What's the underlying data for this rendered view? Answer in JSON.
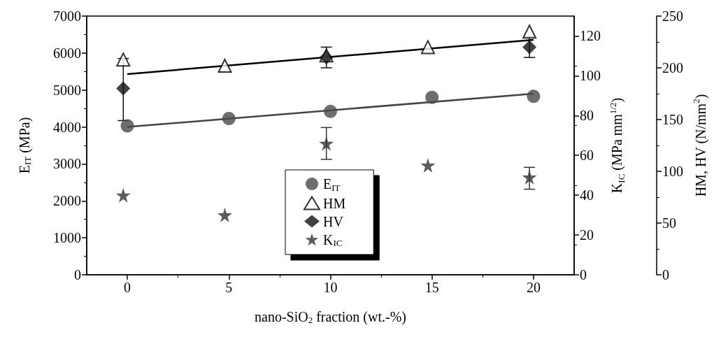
{
  "chart_data": {
    "type": "scatter",
    "xlabel": "nano-SiO$_{2}$ fraction (wt.-%)",
    "ylabel": "E$_{IT}$ (MPa)",
    "y2label": "K$_{IC}$ (MPa mm$^{1/2}$)",
    "y3label": "HM, HV (N/mm$^{2}$)",
    "xlim": [
      -2,
      22
    ],
    "xticks": [
      0,
      5,
      10,
      15,
      20
    ],
    "ylim": [
      0,
      7000
    ],
    "yticks": [
      0,
      1000,
      2000,
      3000,
      4000,
      5000,
      6000,
      7000
    ],
    "y2lim": [
      0,
      130
    ],
    "y2ticks": [
      0,
      20,
      40,
      60,
      80,
      100,
      120
    ],
    "y3lim": [
      0,
      250
    ],
    "y3ticks": [
      0,
      50,
      100,
      150,
      200,
      250
    ],
    "legend": "bottom",
    "grid": false,
    "series": [
      {
        "name": "E$_{IT}$",
        "color": "#4a4a4a",
        "marker": "circle",
        "x": [
          0,
          5,
          10,
          15,
          20
        ],
        "values": [
          4030,
          4230,
          4420,
          4800,
          4830
        ]
      },
      {
        "name": "HM",
        "color": "#ffffff",
        "marker": "triangle",
        "axis": "y3",
        "x": [
          -0.2,
          4.8,
          9.8,
          14.8,
          19.8
        ],
        "values": [
          208,
          202,
          212,
          220,
          235
        ]
      },
      {
        "name": "HV",
        "color": "#111111",
        "marker": "diamond",
        "axis": "y3",
        "x": [
          -0.2,
          9.8,
          19.8
        ],
        "values": [
          180,
          210,
          220
        ],
        "errors": [
          [
            149,
            209
          ],
          [
            200,
            220
          ],
          [
            210,
            230
          ]
        ]
      },
      {
        "name": "K$_{IC}$",
        "color": "#333333",
        "marker": "star",
        "axis": "y2",
        "x": [
          -0.2,
          4.8,
          9.8,
          14.8,
          19.8
        ],
        "values": [
          40,
          30,
          66,
          55,
          49
        ],
        "errors": [
          null,
          null,
          [
            58,
            74
          ],
          null,
          [
            43,
            54
          ]
        ]
      },
      {
        "type": "line",
        "color": "#444444",
        "marker": "none",
        "x": [
          0,
          20
        ],
        "values": [
          4000,
          4900
        ]
      },
      {
        "type": "line",
        "color": "#000000",
        "marker": "none",
        "axis": "y3",
        "x": [
          0,
          20
        ],
        "values": [
          194,
          227
        ]
      }
    ]
  }
}
